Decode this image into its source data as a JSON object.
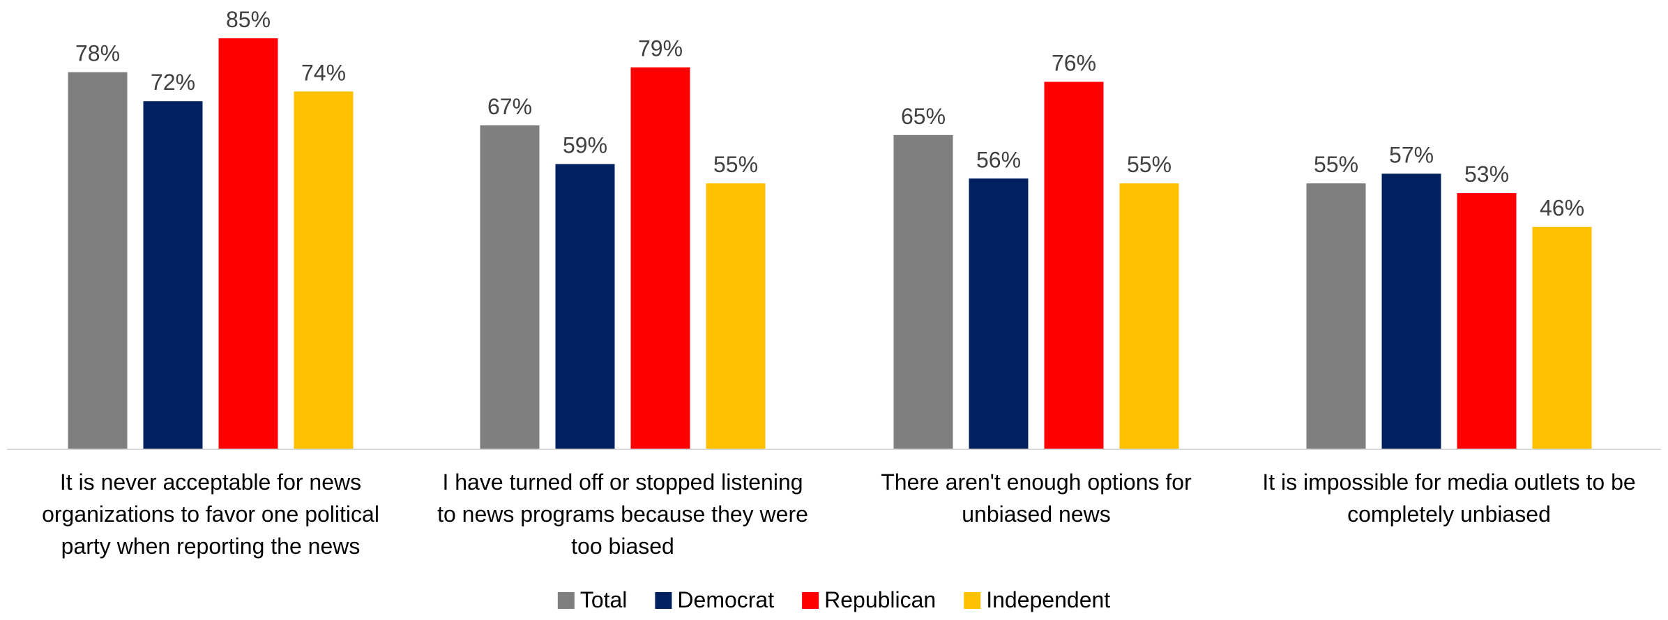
{
  "chart_data": {
    "type": "bar",
    "title": "",
    "xlabel": "",
    "ylabel": "",
    "ylim": [
      0,
      85
    ],
    "value_suffix": "%",
    "grid": false,
    "legend_position": "bottom-center",
    "categories": [
      [
        "It is never acceptable for news",
        "organizations to favor one political",
        "party when reporting the news"
      ],
      [
        "I have turned off or stopped listening",
        "to news programs because they were",
        "too biased"
      ],
      [
        "There aren't enough options for",
        "unbiased news"
      ],
      [
        "It is impossible for media outlets to be",
        "completely unbiased"
      ]
    ],
    "series": [
      {
        "name": "Total",
        "color": "#7f7f7f",
        "values": [
          78,
          67,
          65,
          55
        ]
      },
      {
        "name": "Democrat",
        "color": "#002060",
        "values": [
          72,
          59,
          56,
          57
        ]
      },
      {
        "name": "Republican",
        "color": "#ff0000",
        "values": [
          85,
          79,
          76,
          53
        ]
      },
      {
        "name": "Independent",
        "color": "#ffc000",
        "values": [
          74,
          55,
          55,
          46
        ]
      }
    ]
  }
}
